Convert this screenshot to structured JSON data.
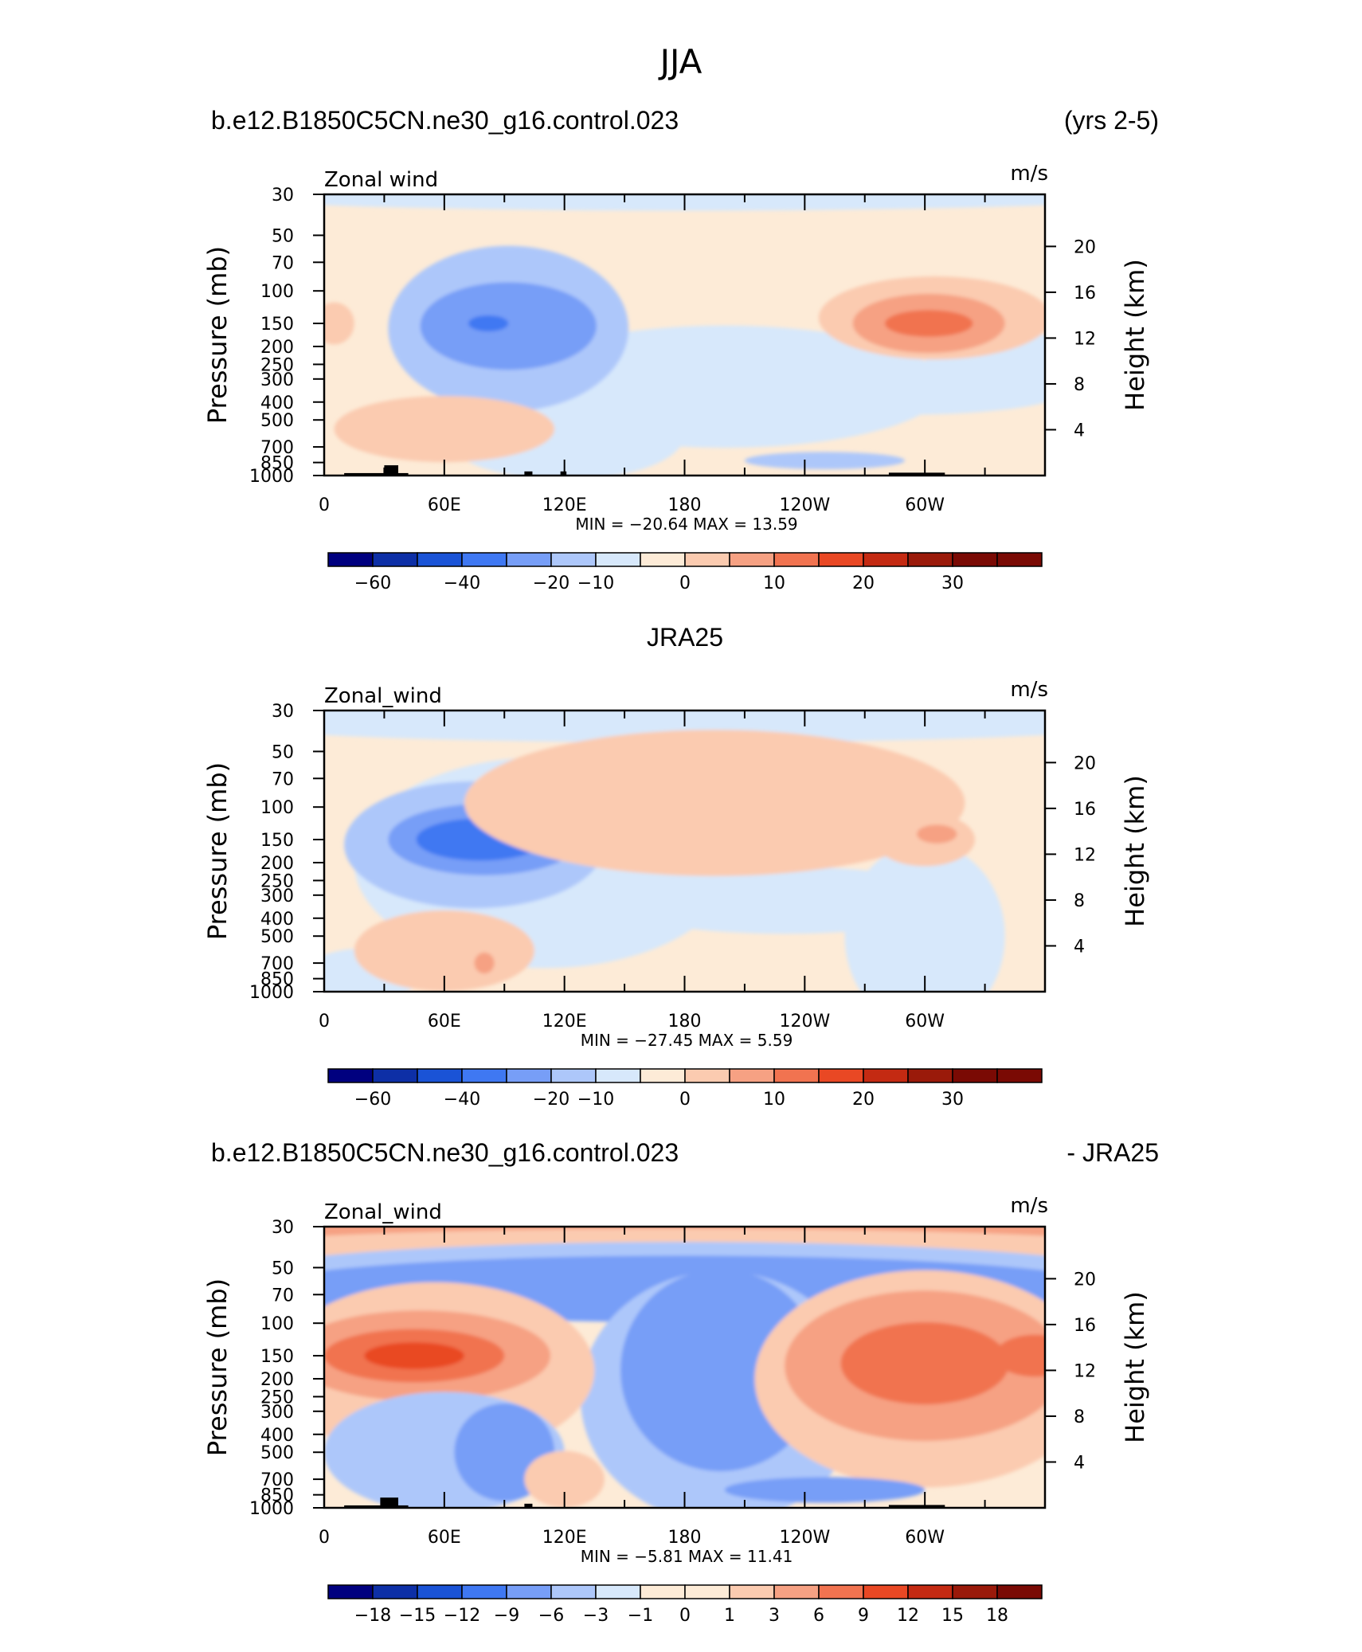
{
  "figure": {
    "title": "JJA",
    "panel1_left": "b.e12.B1850C5CN.ne30_g16.control.023",
    "panel1_right": "(yrs 2-5)",
    "panel2_center": "JRA25",
    "panel3_left": "b.e12.B1850C5CN.ne30_g16.control.023",
    "panel3_right": "- JRA25"
  },
  "palette": [
    "#00007f",
    "#0d2fa6",
    "#1a53d6",
    "#3f78f2",
    "#779ef7",
    "#adc7fa",
    "#d7e8fb",
    "#fdebd7",
    "#fbcbb0",
    "#f6a183",
    "#f17350",
    "#e94824",
    "#c42a12",
    "#9a1a0a",
    "#7a0a04"
  ],
  "chart_data": [
    {
      "type": "heatmap",
      "title": "b.e12.B1850C5CN.ne30_g16.control.023",
      "subtitle": "(yrs 2-5)",
      "variable": "Zonal wind",
      "units": "m/s",
      "ylabel": "Pressure (mb)",
      "ylabel_right": "Height (km)",
      "xlabel": "",
      "x_ticks": [
        "0",
        "60E",
        "120E",
        "180",
        "120W",
        "60W"
      ],
      "y_ticks": [
        "30",
        "50",
        "70",
        "100",
        "150",
        "200",
        "250",
        "300",
        "400",
        "500",
        "700",
        "850",
        "1000"
      ],
      "y_ticks_right": [
        "20",
        "16",
        "12",
        "8",
        "4"
      ],
      "xlim": [
        0,
        360
      ],
      "ylim": [
        1000,
        30
      ],
      "min_max": "MIN = −20.64   MAX =   13.59",
      "colorbar_labels": [
        "−60",
        "−40",
        "−20",
        "−10",
        "0",
        "10",
        "20",
        "30"
      ],
      "blobs": [
        {
          "x": 180,
          "y": 30,
          "rx": 240,
          "ry": 10,
          "c": 6
        },
        {
          "x": 120,
          "y": 600,
          "rx": 60,
          "ry": 280,
          "c": 6
        },
        {
          "x": 200,
          "y": 330,
          "rx": 110,
          "ry": 200,
          "c": 6
        },
        {
          "x": 290,
          "y": 350,
          "rx": 80,
          "ry": 80,
          "c": 6
        },
        {
          "x": 340,
          "y": 230,
          "rx": 40,
          "ry": 60,
          "c": 6
        },
        {
          "x": 92,
          "y": 160,
          "rx": 60,
          "ry": 120,
          "c": 5
        },
        {
          "x": 92,
          "y": 155,
          "rx": 44,
          "ry": 70,
          "c": 4
        },
        {
          "x": 82,
          "y": 150,
          "rx": 10,
          "ry": 6,
          "c": 3
        },
        {
          "x": 60,
          "y": 560,
          "rx": 55,
          "ry": 190,
          "c": 8
        },
        {
          "x": 250,
          "y": 830,
          "rx": 40,
          "ry": 40,
          "c": 5
        },
        {
          "x": 305,
          "y": 140,
          "rx": 58,
          "ry": 60,
          "c": 8
        },
        {
          "x": 302,
          "y": 150,
          "rx": 38,
          "ry": 45,
          "c": 9
        },
        {
          "x": 302,
          "y": 150,
          "rx": 22,
          "ry": 16,
          "c": 10
        },
        {
          "x": 5,
          "y": 150,
          "rx": 10,
          "ry": 30,
          "c": 8
        }
      ],
      "topography": [
        {
          "lon0": 10,
          "lon1": 42,
          "p": 970
        },
        {
          "lon0": 30,
          "lon1": 37,
          "p": 880
        },
        {
          "lon0": 100,
          "lon1": 104,
          "p": 950
        },
        {
          "lon0": 118,
          "lon1": 121,
          "p": 950
        },
        {
          "lon0": 282,
          "lon1": 310,
          "p": 965
        }
      ]
    },
    {
      "type": "heatmap",
      "title": "JRA25",
      "variable": "Zonal_wind",
      "units": "m/s",
      "ylabel": "Pressure (mb)",
      "ylabel_right": "Height (km)",
      "xlabel": "",
      "x_ticks": [
        "0",
        "60E",
        "120E",
        "180",
        "120W",
        "60W"
      ],
      "y_ticks": [
        "30",
        "50",
        "70",
        "100",
        "150",
        "200",
        "250",
        "300",
        "400",
        "500",
        "700",
        "850",
        "1000"
      ],
      "y_ticks_right": [
        "20",
        "16",
        "12",
        "8",
        "4"
      ],
      "xlim": [
        0,
        360
      ],
      "ylim": [
        1000,
        30
      ],
      "min_max": "MIN = −27.45   MAX =     5.59",
      "colorbar_labels": [
        "−60",
        "−40",
        "−20",
        "−10",
        "0",
        "10",
        "20",
        "30"
      ],
      "blobs": [
        {
          "x": 180,
          "y": 34,
          "rx": 240,
          "ry": 12,
          "c": 6
        },
        {
          "x": 110,
          "y": 200,
          "rx": 95,
          "ry": 170,
          "c": 6
        },
        {
          "x": 230,
          "y": 320,
          "rx": 90,
          "ry": 110,
          "c": 6
        },
        {
          "x": 300,
          "y": 500,
          "rx": 40,
          "ry": 400,
          "c": 6
        },
        {
          "x": 20,
          "y": 800,
          "rx": 30,
          "ry": 200,
          "c": 6
        },
        {
          "x": 75,
          "y": 160,
          "rx": 65,
          "ry": 100,
          "c": 5
        },
        {
          "x": 80,
          "y": 150,
          "rx": 48,
          "ry": 55,
          "c": 4
        },
        {
          "x": 78,
          "y": 150,
          "rx": 32,
          "ry": 30,
          "c": 3
        },
        {
          "x": 195,
          "y": 95,
          "rx": 125,
          "ry": 70,
          "c": 8
        },
        {
          "x": 300,
          "y": 150,
          "rx": 25,
          "ry": 40,
          "c": 8
        },
        {
          "x": 60,
          "y": 600,
          "rx": 45,
          "ry": 250,
          "c": 8
        },
        {
          "x": 80,
          "y": 700,
          "rx": 5,
          "ry": 50,
          "c": 9
        },
        {
          "x": 306,
          "y": 140,
          "rx": 10,
          "ry": 8,
          "c": 9
        }
      ],
      "topography": []
    },
    {
      "type": "heatmap",
      "title": "b.e12.B1850C5CN.ne30_g16.control.023",
      "subtitle": "- JRA25",
      "variable": "Zonal_wind",
      "units": "m/s",
      "ylabel": "Pressure (mb)",
      "ylabel_right": "Height (km)",
      "xlabel": "",
      "x_ticks": [
        "0",
        "60E",
        "120E",
        "180",
        "120W",
        "60W"
      ],
      "y_ticks": [
        "30",
        "50",
        "70",
        "100",
        "150",
        "200",
        "250",
        "300",
        "400",
        "500",
        "700",
        "850",
        "1000"
      ],
      "y_ticks_right": [
        "20",
        "16",
        "12",
        "8",
        "4"
      ],
      "xlim": [
        0,
        360
      ],
      "ylim": [
        1000,
        30
      ],
      "min_max": "MIN =    −5.81   MAX =   11.41",
      "colorbar_labels": [
        "−18",
        "−15",
        "−12",
        "−9",
        "−6",
        "−3",
        "−1",
        "0",
        "1",
        "3",
        "6",
        "9",
        "12",
        "15",
        "18"
      ],
      "blobs": [
        {
          "x": 180,
          "y": 34,
          "rx": 240,
          "ry": 10,
          "c": 9
        },
        {
          "x": 180,
          "y": 40,
          "rx": 240,
          "ry": 8,
          "c": 8
        },
        {
          "x": 180,
          "y": 60,
          "rx": 240,
          "ry": 25,
          "c": 5
        },
        {
          "x": 180,
          "y": 65,
          "rx": 215,
          "ry": 22,
          "c": 4
        },
        {
          "x": 198,
          "y": 250,
          "rx": 70,
          "ry": 360,
          "c": 5
        },
        {
          "x": 198,
          "y": 180,
          "rx": 50,
          "ry": 150,
          "c": 4
        },
        {
          "x": 55,
          "y": 180,
          "rx": 80,
          "ry": 140,
          "c": 8
        },
        {
          "x": 48,
          "y": 150,
          "rx": 65,
          "ry": 70,
          "c": 9
        },
        {
          "x": 45,
          "y": 150,
          "rx": 45,
          "ry": 40,
          "c": 10
        },
        {
          "x": 45,
          "y": 150,
          "rx": 25,
          "ry": 16,
          "c": 11
        },
        {
          "x": 300,
          "y": 200,
          "rx": 85,
          "ry": 200,
          "c": 8
        },
        {
          "x": 300,
          "y": 170,
          "rx": 70,
          "ry": 120,
          "c": 9
        },
        {
          "x": 300,
          "y": 165,
          "rx": 42,
          "ry": 70,
          "c": 10
        },
        {
          "x": 355,
          "y": 150,
          "rx": 20,
          "ry": 30,
          "c": 10
        },
        {
          "x": 60,
          "y": 500,
          "rx": 60,
          "ry": 300,
          "c": 5
        },
        {
          "x": 90,
          "y": 500,
          "rx": 25,
          "ry": 250,
          "c": 4
        },
        {
          "x": 250,
          "y": 800,
          "rx": 50,
          "ry": 80,
          "c": 4
        },
        {
          "x": 120,
          "y": 700,
          "rx": 20,
          "ry": 200,
          "c": 8
        }
      ],
      "topography": [
        {
          "lon0": 10,
          "lon1": 42,
          "p": 970
        },
        {
          "lon0": 28,
          "lon1": 37,
          "p": 880
        },
        {
          "lon0": 100,
          "lon1": 104,
          "p": 950
        },
        {
          "lon0": 282,
          "lon1": 310,
          "p": 965
        }
      ]
    }
  ]
}
